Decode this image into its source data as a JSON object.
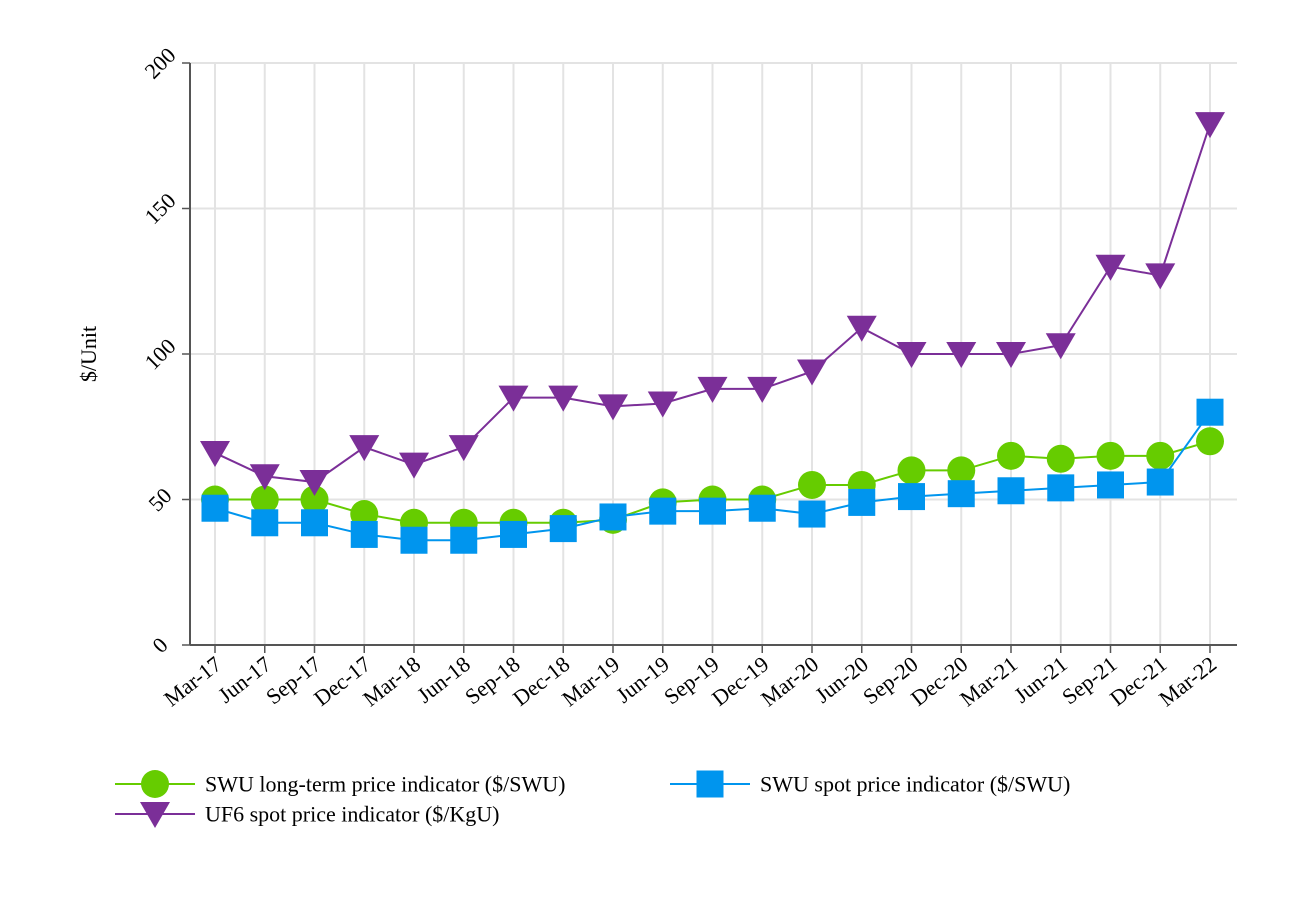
{
  "chart_data": {
    "type": "line",
    "title": "",
    "xlabel": "",
    "ylabel": "$/Unit",
    "ylim": [
      0,
      200
    ],
    "yticks": [
      "0",
      "50",
      "100",
      "150",
      "200"
    ],
    "grid": true,
    "legend_position": "bottom",
    "categories": [
      "Mar-17",
      "Jun-17",
      "Sep-17",
      "Dec-17",
      "Mar-18",
      "Jun-18",
      "Sep-18",
      "Dec-18",
      "Mar-19",
      "Jun-19",
      "Sep-19",
      "Dec-19",
      "Mar-20",
      "Jun-20",
      "Sep-20",
      "Dec-20",
      "Mar-21",
      "Jun-21",
      "Sep-21",
      "Dec-21",
      "Mar-22"
    ],
    "series": [
      {
        "name": "SWU long-term price indicator ($/SWU)",
        "color": "#66cc00",
        "marker": "circle",
        "values": [
          50,
          50,
          50,
          45,
          42,
          42,
          42,
          42,
          43,
          49,
          50,
          50,
          55,
          55,
          60,
          60,
          65,
          64,
          65,
          65,
          70
        ]
      },
      {
        "name": "SWU spot price indicator ($/SWU)",
        "color": "#0095ee",
        "marker": "square",
        "values": [
          47,
          42,
          42,
          38,
          36,
          36,
          38,
          40,
          44,
          46,
          46,
          47,
          45,
          49,
          51,
          52,
          53,
          54,
          55,
          56,
          80
        ]
      },
      {
        "name": "UF6 spot price indicator ($/KgU)",
        "color": "#7b2f98",
        "marker": "triangle-down",
        "values": [
          66,
          58,
          56,
          68,
          62,
          68,
          85,
          85,
          82,
          83,
          88,
          88,
          94,
          109,
          100,
          100,
          100,
          103,
          130,
          127,
          179
        ]
      }
    ]
  }
}
